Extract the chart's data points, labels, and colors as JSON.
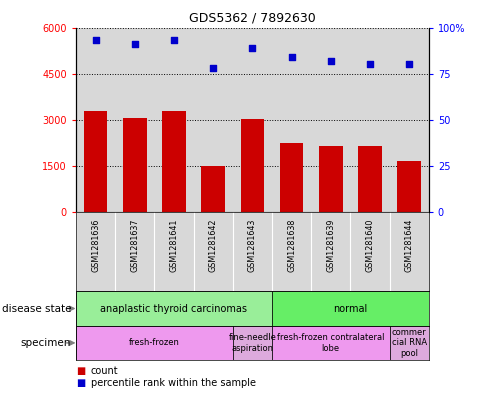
{
  "title": "GDS5362 / 7892630",
  "samples": [
    "GSM1281636",
    "GSM1281637",
    "GSM1281641",
    "GSM1281642",
    "GSM1281643",
    "GSM1281638",
    "GSM1281639",
    "GSM1281640",
    "GSM1281644"
  ],
  "counts": [
    3300,
    3050,
    3300,
    1500,
    3020,
    2250,
    2150,
    2150,
    1650
  ],
  "percentiles": [
    93,
    91,
    93,
    78,
    89,
    84,
    82,
    80,
    80
  ],
  "ylim_left": [
    0,
    6000
  ],
  "ylim_right": [
    0,
    100
  ],
  "yticks_left": [
    0,
    1500,
    3000,
    4500,
    6000
  ],
  "yticks_right": [
    0,
    25,
    50,
    75,
    100
  ],
  "bar_color": "#cc0000",
  "scatter_color": "#0000cc",
  "disease_state_rows": [
    {
      "label": "anaplastic thyroid carcinomas",
      "start": 0,
      "end": 5,
      "color": "#99ee99"
    },
    {
      "label": "normal",
      "start": 5,
      "end": 9,
      "color": "#66ee66"
    }
  ],
  "specimen_rows": [
    {
      "label": "fresh-frozen",
      "start": 0,
      "end": 4,
      "color": "#ee99ee"
    },
    {
      "label": "fine-needle\naspiration",
      "start": 4,
      "end": 5,
      "color": "#ddaadd"
    },
    {
      "label": "fresh-frozen contralateral\nlobe",
      "start": 5,
      "end": 8,
      "color": "#ee99ee"
    },
    {
      "label": "commer\ncial RNA\npool",
      "start": 8,
      "end": 9,
      "color": "#ddaadd"
    }
  ],
  "legend_items": [
    "count",
    "percentile rank within the sample"
  ],
  "background_color": "#ffffff",
  "plot_bg_color": "#d8d8d8",
  "xtick_bg_color": "#d8d8d8"
}
